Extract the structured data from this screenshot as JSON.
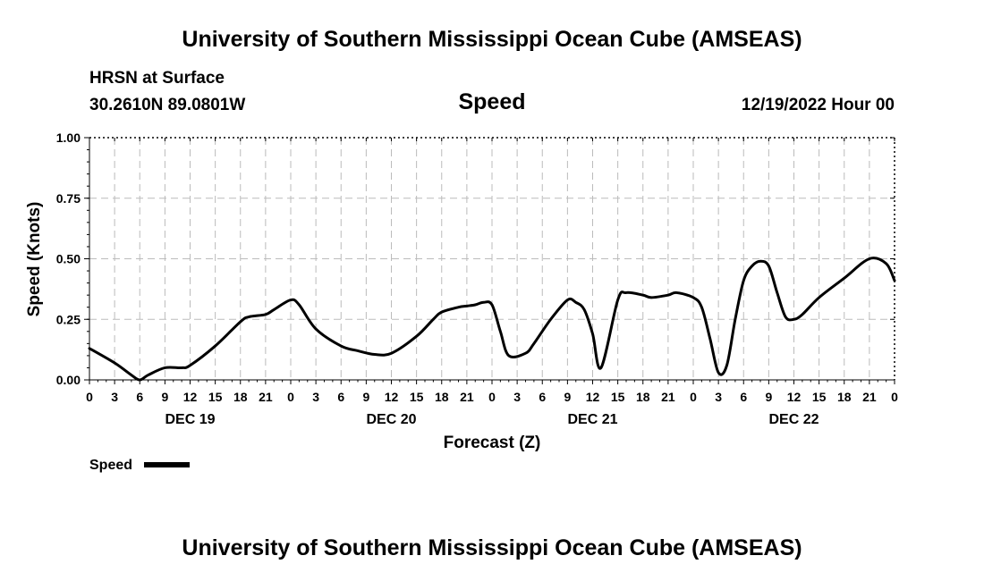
{
  "header": {
    "title_top": "University of Southern Mississippi Ocean Cube (AMSEAS)",
    "title_bottom": "University of Southern Mississippi Ocean Cube (AMSEAS)",
    "location_label": "HRSN at Surface",
    "coordinates": "30.2610N  89.0801W",
    "chart_name": "Speed",
    "datetime": "12/19/2022 Hour 00"
  },
  "colors": {
    "line": "#000000",
    "grid": "#bbbbbb",
    "axis": "#000000"
  },
  "chart_data": {
    "type": "line",
    "title": "Speed",
    "xlabel": "Forecast (Z)",
    "ylabel": "Speed (Knots)",
    "ylim": [
      0,
      1
    ],
    "xlim": [
      0,
      96
    ],
    "yticks": [
      0.0,
      0.25,
      0.5,
      0.75,
      1.0
    ],
    "ytick_labels": [
      "0.00",
      "0.25",
      "0.50",
      "0.75",
      "1.00"
    ],
    "xtick_labels": [
      "0",
      "3",
      "6",
      "9",
      "12",
      "15",
      "18",
      "21",
      "0",
      "3",
      "6",
      "9",
      "12",
      "15",
      "18",
      "21",
      "0",
      "3",
      "6",
      "9",
      "12",
      "15",
      "18",
      "21",
      "0",
      "3",
      "6",
      "9",
      "12",
      "15",
      "18",
      "21",
      "0"
    ],
    "day_labels": [
      {
        "label": "DEC 19",
        "hour": 12
      },
      {
        "label": "DEC 20",
        "hour": 36
      },
      {
        "label": "DEC 21",
        "hour": 60
      },
      {
        "label": "DEC 22",
        "hour": 84
      }
    ],
    "grid": true,
    "legend_position": "bottom-left",
    "series": [
      {
        "name": "Speed",
        "x": [
          0,
          3,
          5,
          6,
          7,
          9,
          11,
          12,
          15,
          18,
          19,
          21,
          22,
          24,
          25,
          27,
          30,
          32,
          34,
          36,
          39,
          41,
          42,
          44,
          45,
          46,
          47,
          48,
          49,
          50,
          52,
          53,
          55,
          57,
          58,
          59,
          60,
          61,
          63,
          64,
          66,
          67,
          69,
          70,
          72,
          73,
          74,
          75,
          76,
          77,
          78,
          79,
          80,
          81,
          82,
          83,
          84,
          85,
          87,
          90,
          93,
          95,
          96
        ],
        "y": [
          0.13,
          0.07,
          0.02,
          0.0,
          0.02,
          0.05,
          0.05,
          0.06,
          0.14,
          0.24,
          0.26,
          0.27,
          0.29,
          0.33,
          0.31,
          0.21,
          0.14,
          0.12,
          0.105,
          0.11,
          0.18,
          0.25,
          0.28,
          0.3,
          0.305,
          0.31,
          0.32,
          0.31,
          0.2,
          0.1,
          0.11,
          0.15,
          0.25,
          0.33,
          0.32,
          0.29,
          0.19,
          0.05,
          0.33,
          0.36,
          0.35,
          0.34,
          0.35,
          0.36,
          0.34,
          0.3,
          0.17,
          0.03,
          0.06,
          0.25,
          0.41,
          0.47,
          0.49,
          0.47,
          0.36,
          0.26,
          0.25,
          0.27,
          0.34,
          0.42,
          0.5,
          0.48,
          0.41
        ]
      }
    ]
  }
}
